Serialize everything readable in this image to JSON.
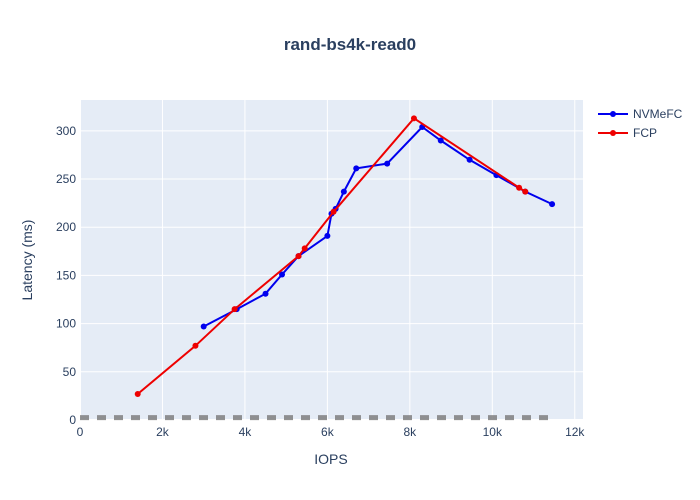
{
  "chart_data": {
    "type": "line",
    "title": "rand-bs4k-read0",
    "xlabel": "IOPS",
    "ylabel": "Latency (ms)",
    "xlim": [
      0,
      12200
    ],
    "ylim": [
      0,
      332
    ],
    "x_ticks": [
      {
        "value": 0,
        "label": "0"
      },
      {
        "value": 2000,
        "label": "2k"
      },
      {
        "value": 4000,
        "label": "4k"
      },
      {
        "value": 6000,
        "label": "6k"
      },
      {
        "value": 8000,
        "label": "8k"
      },
      {
        "value": 10000,
        "label": "10k"
      },
      {
        "value": 12000,
        "label": "12k"
      }
    ],
    "y_ticks": [
      {
        "value": 0,
        "label": "0"
      },
      {
        "value": 50,
        "label": "50"
      },
      {
        "value": 100,
        "label": "100"
      },
      {
        "value": 150,
        "label": "150"
      },
      {
        "value": 200,
        "label": "200"
      },
      {
        "value": 250,
        "label": "250"
      },
      {
        "value": 300,
        "label": "300"
      }
    ],
    "grid": true,
    "legend_position": "top-right",
    "background": "#e5ecf6",
    "series": [
      {
        "name": "NVMeFC",
        "color": "#0000ee",
        "x": [
          3000,
          3800,
          4500,
          4900,
          5300,
          6000,
          6100,
          6200,
          6400,
          6700,
          7450,
          8300,
          8750,
          9450,
          10100,
          10800,
          11450
        ],
        "y": [
          97,
          115,
          131,
          151,
          170,
          191,
          214,
          219,
          237,
          261,
          266,
          304,
          290,
          270,
          254,
          237,
          224
        ]
      },
      {
        "name": "FCP",
        "color": "#ee0000",
        "x": [
          1400,
          2800,
          3750,
          5300,
          5450,
          6150,
          8100,
          10650,
          10800
        ],
        "y": [
          27,
          77,
          115,
          170,
          178,
          216,
          313,
          241,
          237
        ]
      },
      {
        "name": "",
        "color": "#7f7f7f",
        "dashed": true,
        "x": [
          0,
          11450
        ],
        "y": [
          2.5,
          2.5
        ]
      }
    ]
  }
}
